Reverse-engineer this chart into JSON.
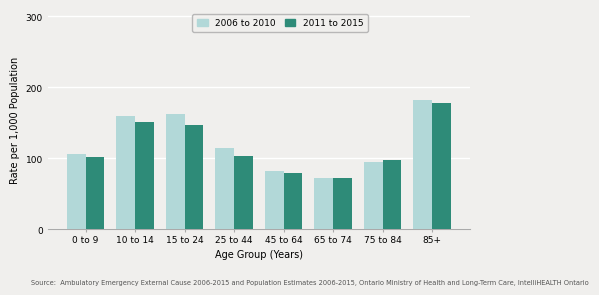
{
  "categories": [
    "0 to 9",
    "10 to 14",
    "15 to 24",
    "25 to 44",
    "45 to 64",
    "65 to 74",
    "75 to 84",
    "85+"
  ],
  "values_2006_2010": [
    107,
    160,
    163,
    115,
    82,
    73,
    95,
    183
  ],
  "values_2011_2015": [
    102,
    152,
    147,
    103,
    80,
    72,
    98,
    178
  ],
  "color_2006_2010": "#b2d8d8",
  "color_2011_2015": "#2e8b78",
  "xlabel": "Age Group (Years)",
  "ylabel": "Rate per 1,000 Population",
  "ylim": [
    0,
    310
  ],
  "yticks": [
    0,
    100,
    200,
    300
  ],
  "legend_labels": [
    "2006 to 2010",
    "2011 to 2015"
  ],
  "source_text": "Source:  Ambulatory Emergency External Cause 2006-2015 and Population Estimates 2006-2015, Ontario Ministry of Health and Long-Term Care, IntelliHEALTH Ontario",
  "bar_width": 0.38,
  "background_color": "#f0efed",
  "plot_bg_color": "#f0efed",
  "grid_color": "#ffffff",
  "axis_fontsize": 7,
  "tick_fontsize": 6.5,
  "source_fontsize": 4.8
}
